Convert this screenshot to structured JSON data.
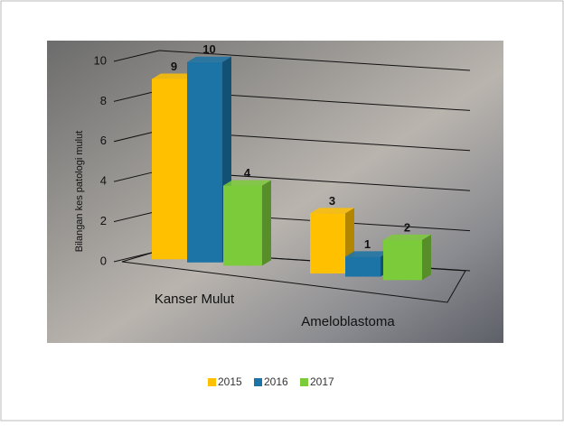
{
  "chart_data": {
    "type": "bar3d",
    "y_label": "Bilangan kes patologi mulut",
    "categories": [
      "Kanser Mulut",
      "Ameloblastoma"
    ],
    "series": [
      {
        "name": "2015",
        "color": "#ffc000",
        "values": [
          9,
          3
        ]
      },
      {
        "name": "2016",
        "color": "#1b73a6",
        "values": [
          10,
          1
        ]
      },
      {
        "name": "2017",
        "color": "#7ccb3a",
        "values": [
          4,
          2
        ]
      }
    ],
    "ylim": [
      0,
      10
    ],
    "yticks": [
      0,
      2,
      4,
      6,
      8,
      10
    ],
    "grid": true,
    "legend": "bottom"
  }
}
